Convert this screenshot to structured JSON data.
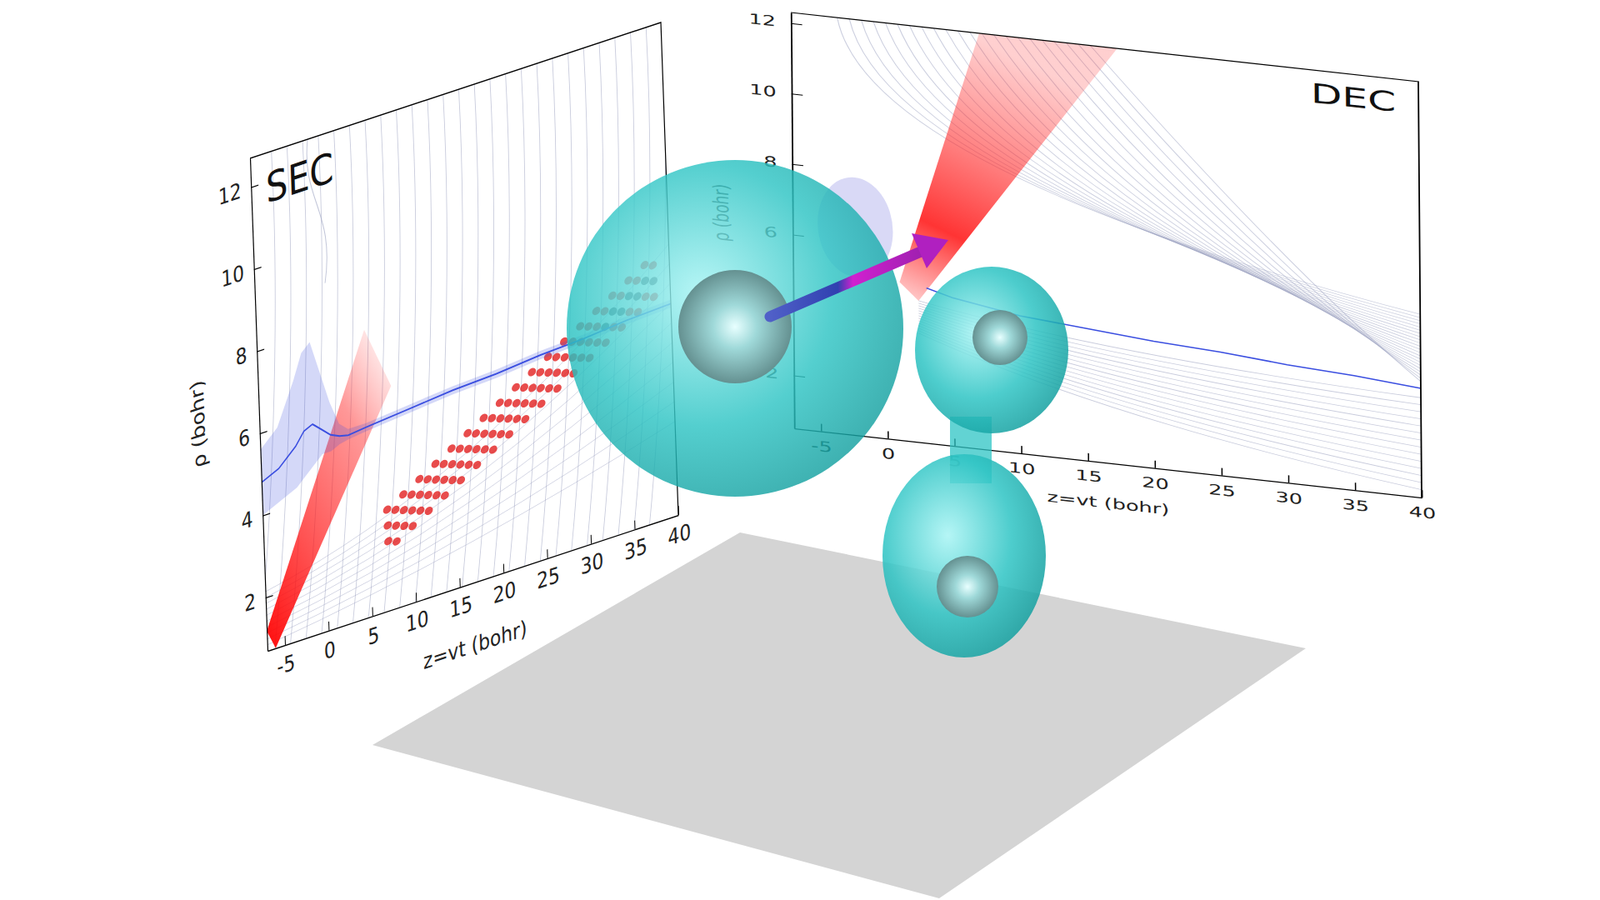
{
  "chart_data": [
    {
      "type": "line",
      "title": "SEC",
      "x_label": "z=vt (bohr)",
      "y_label": "ρ (bohr)",
      "xlim": [
        -7,
        40
      ],
      "ylim": [
        0.7,
        12.7
      ],
      "xticks": [
        -5,
        0,
        5,
        10,
        15,
        20,
        25,
        30,
        35,
        40
      ],
      "yticks": [
        2,
        4,
        6,
        8,
        10,
        12
      ],
      "series": [
        {
          "color": "#3a4ee0",
          "x": [
            -7,
            -5,
            -3,
            -2,
            -1,
            0,
            1,
            2,
            3,
            5,
            10,
            15,
            20,
            25,
            30,
            35,
            40
          ],
          "values": [
            4.8,
            5.0,
            5.4,
            5.7,
            5.8,
            5.6,
            5.4,
            5.3,
            5.25,
            5.3,
            5.4,
            5.5,
            5.55,
            5.65,
            5.7,
            5.8,
            5.85
          ],
          "lower": [
            4.0,
            4.2,
            4.4,
            4.6,
            4.8,
            5.0,
            5.0,
            5.1,
            5.15,
            5.2,
            5.3,
            5.4,
            5.45,
            5.55,
            5.6,
            5.7,
            5.75
          ],
          "upper": [
            5.6,
            6.0,
            7.0,
            7.6,
            7.8,
            7.0,
            6.2,
            5.6,
            5.4,
            5.4,
            5.5,
            5.6,
            5.65,
            5.75,
            5.8,
            5.9,
            5.95
          ]
        }
      ]
    },
    {
      "type": "line",
      "title": "DEC",
      "x_label": "z=vt (bohr)",
      "y_label": "ρ (bohr)",
      "xlim": [
        -7,
        40
      ],
      "ylim": [
        0.5,
        12.3
      ],
      "xticks": [
        -5,
        0,
        5,
        10,
        15,
        20,
        25,
        30,
        35,
        40
      ],
      "yticks": [
        2,
        4,
        6,
        8,
        10,
        12
      ],
      "series": [
        {
          "color": "#3a4ee0",
          "x": [
            3,
            5,
            10,
            15,
            20,
            25,
            30,
            35,
            40
          ],
          "values": [
            4.9,
            4.7,
            4.4,
            4.25,
            4.1,
            4.0,
            3.85,
            3.75,
            3.6
          ]
        }
      ]
    }
  ]
}
